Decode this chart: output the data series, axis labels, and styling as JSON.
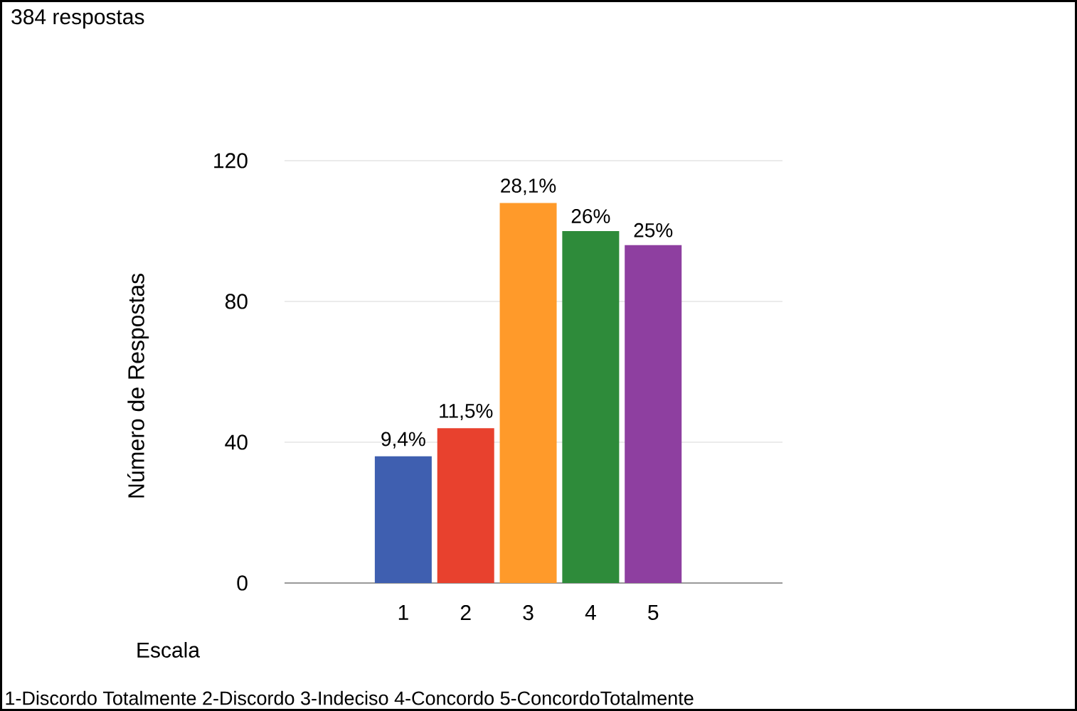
{
  "chart_data": {
    "type": "bar",
    "title": "384 respostas",
    "xlabel": "Escala",
    "ylabel": "Número de Respostas",
    "annotations": [
      "1-Discordo Totalmente 2-Discordo 3-Indeciso 4-Concordo 5-ConcordoTotalmente",
      {
        "text": "9,4%",
        "x": "1",
        "y": 36
      },
      {
        "text": "11,5%",
        "x": "2",
        "y": 44
      },
      {
        "text": "28,1%",
        "x": "3",
        "y": 108
      },
      {
        "text": "26%",
        "x": "4",
        "y": 100
      },
      {
        "text": "25%",
        "x": "5",
        "y": 96
      }
    ],
    "categories": [
      "1",
      "2",
      "3",
      "4",
      "5"
    ],
    "values": [
      36,
      44,
      108,
      100,
      96
    ],
    "colors": [
      "#3f5fb0",
      "#e8412e",
      "#ff9a2a",
      "#2e8b3a",
      "#8e3fa0"
    ],
    "ylim": [
      0,
      120
    ],
    "yticks": [
      0,
      40,
      80,
      120
    ],
    "grid": "y"
  }
}
